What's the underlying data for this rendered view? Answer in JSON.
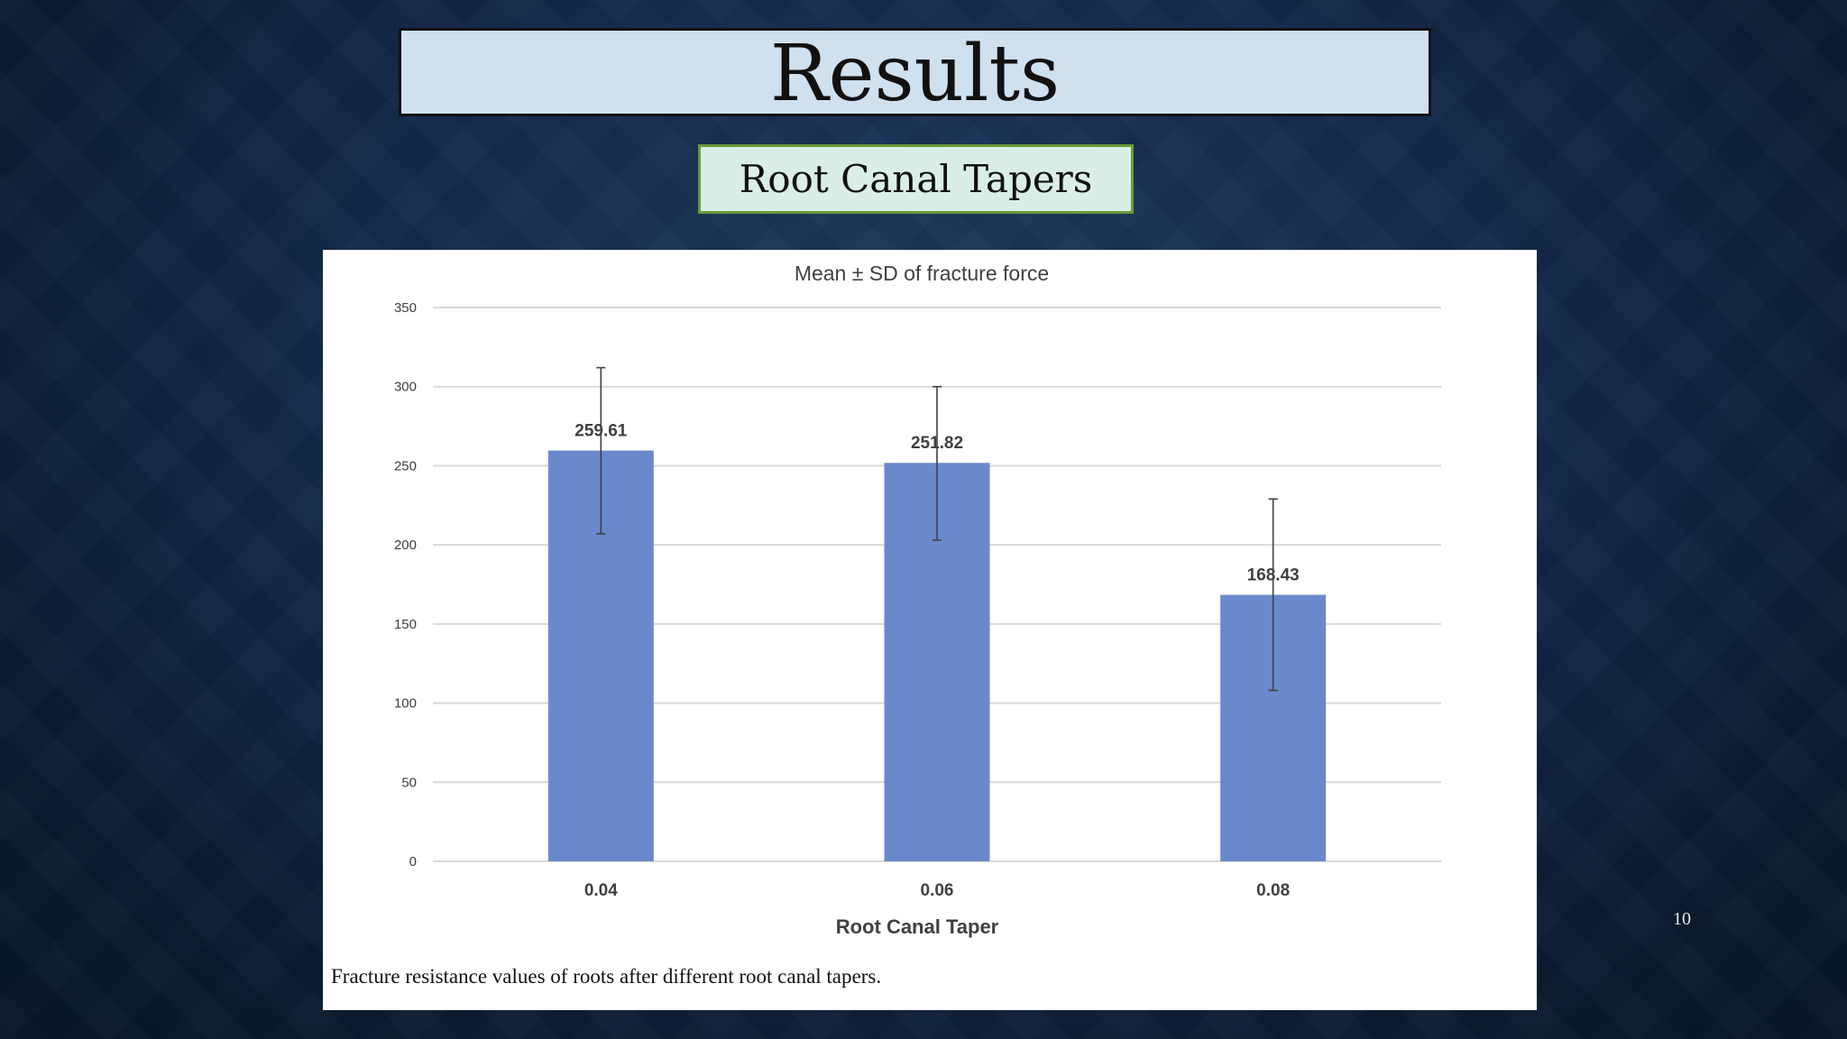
{
  "slide": {
    "title": "Results",
    "subtitle": "Root Canal Tapers",
    "caption": "Fracture resistance values of roots after different root canal tapers.",
    "page_number": "10"
  },
  "colors": {
    "bar": "#6a89cc",
    "grid": "#d9d9d9",
    "error_bar": "#404040",
    "title_box": "#cfe0ef",
    "subtitle_box": "#d9efe6",
    "subtitle_border": "#6a9a3b"
  },
  "chart_data": {
    "type": "bar",
    "title": "Mean ± SD of fracture force",
    "xlabel": "Root Canal Taper",
    "ylabel": "",
    "categories": [
      "0.04",
      "0.06",
      "0.08"
    ],
    "values": [
      259.61,
      251.82,
      168.43
    ],
    "data_labels": [
      "259.61",
      "251.82",
      "168.43"
    ],
    "error_bars": [
      {
        "low": 207,
        "high": 312
      },
      {
        "low": 203,
        "high": 300
      },
      {
        "low": 108,
        "high": 229
      }
    ],
    "ylim": [
      0,
      350
    ],
    "yticks": [
      0,
      50,
      100,
      150,
      200,
      250,
      300,
      350
    ],
    "ytick_labels": [
      "0",
      "50",
      "100",
      "150",
      "200",
      "250",
      "300",
      "350"
    ],
    "grid": true,
    "legend": "none"
  }
}
